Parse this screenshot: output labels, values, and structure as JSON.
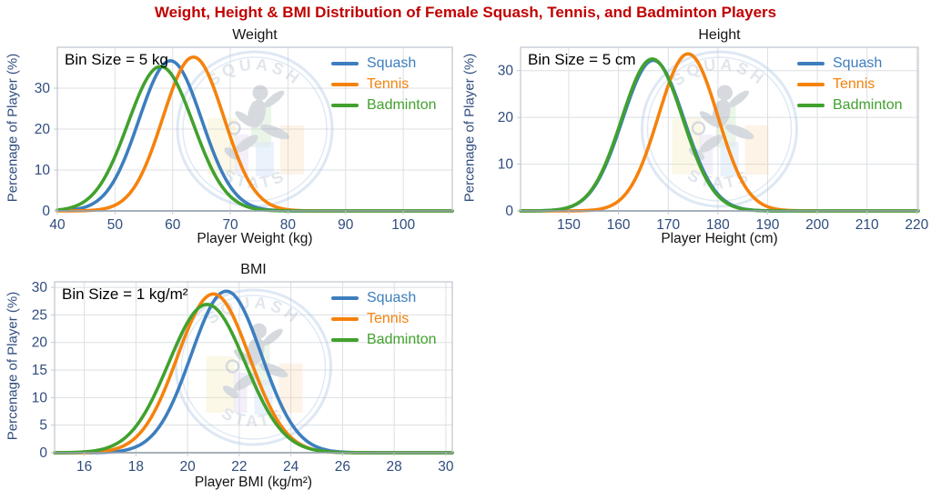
{
  "page": {
    "title": "Weight, Height & BMI Distribution of Female Squash, Tennis, and Badminton Players"
  },
  "style": {
    "background": "#FFFFFF",
    "title_color": "#C00000",
    "tick_label_color": "#2F4C7E",
    "axis_title_color": "#141414",
    "annotation_color": "#000000",
    "grid_color": "#DCDFE3",
    "border_color": "#C3CAD2",
    "axis_line_color": "#8E9BA8"
  },
  "watermark": {
    "top_text": "SQUASH",
    "bottom_text": "STATS"
  },
  "chart_data": [
    {
      "id": "weight",
      "type": "line",
      "curve": "gaussian-distribution",
      "title": "Weight",
      "annotation": "Bin Size = 5 kg",
      "xlabel": "Player Weight (kg)",
      "ylabel": "Percenage of Player (%)",
      "x_ticks": [
        40,
        50,
        60,
        70,
        80,
        90,
        100
      ],
      "y_ticks": [
        0,
        10,
        20,
        30
      ],
      "xlim": [
        40,
        108.5
      ],
      "ylim": [
        0,
        40
      ],
      "grid": true,
      "legend_position": "top-right",
      "series": [
        {
          "name": "Squash",
          "color": "#3D7EBE",
          "mean": 59.6,
          "sd": 5.45,
          "peak_percent": 36.7
        },
        {
          "name": "Tennis",
          "color": "#F5820D",
          "mean": 63.6,
          "sd": 5.3,
          "peak_percent": 37.6
        },
        {
          "name": "Badminton",
          "color": "#41A12E",
          "mean": 57.9,
          "sd": 5.65,
          "peak_percent": 35.3
        }
      ]
    },
    {
      "id": "height",
      "type": "line",
      "curve": "gaussian-distribution",
      "title": "Height",
      "annotation": "Bin Size = 5 cm",
      "xlabel": "Player Height (cm)",
      "ylabel": "Percenage of Player (%)",
      "x_ticks": [
        150,
        160,
        170,
        180,
        190,
        200,
        210,
        220
      ],
      "y_ticks": [
        0,
        10,
        20,
        30
      ],
      "xlim": [
        140.3,
        220.3
      ],
      "ylim": [
        0,
        35
      ],
      "grid": true,
      "legend_position": "top-right",
      "series": [
        {
          "name": "Squash",
          "color": "#3D7EBE",
          "mean": 167.0,
          "sd": 6.2,
          "peak_percent": 32.2
        },
        {
          "name": "Tennis",
          "color": "#F5820D",
          "mean": 174.0,
          "sd": 5.95,
          "peak_percent": 33.6
        },
        {
          "name": "Badminton",
          "color": "#41A12E",
          "mean": 166.8,
          "sd": 6.15,
          "peak_percent": 32.5
        }
      ]
    },
    {
      "id": "bmi",
      "type": "line",
      "curve": "gaussian-distribution",
      "title": "BMI",
      "annotation": "Bin Size = 1 kg/m²",
      "xlabel": "Player BMI (kg/m²)",
      "ylabel": "Percenage of Player (%)",
      "x_ticks": [
        16,
        18,
        20,
        22,
        24,
        26,
        28,
        30
      ],
      "y_ticks": [
        0,
        5,
        10,
        15,
        20,
        25,
        30
      ],
      "xlim": [
        14.85,
        30.25
      ],
      "ylim": [
        0,
        31
      ],
      "grid": true,
      "legend_position": "top-right",
      "series": [
        {
          "name": "Squash",
          "color": "#3D7EBE",
          "mean": 21.5,
          "sd": 1.36,
          "peak_percent": 29.3
        },
        {
          "name": "Tennis",
          "color": "#F5820D",
          "mean": 21.0,
          "sd": 1.39,
          "peak_percent": 28.8
        },
        {
          "name": "Badminton",
          "color": "#41A12E",
          "mean": 20.75,
          "sd": 1.48,
          "peak_percent": 26.9
        }
      ]
    }
  ]
}
